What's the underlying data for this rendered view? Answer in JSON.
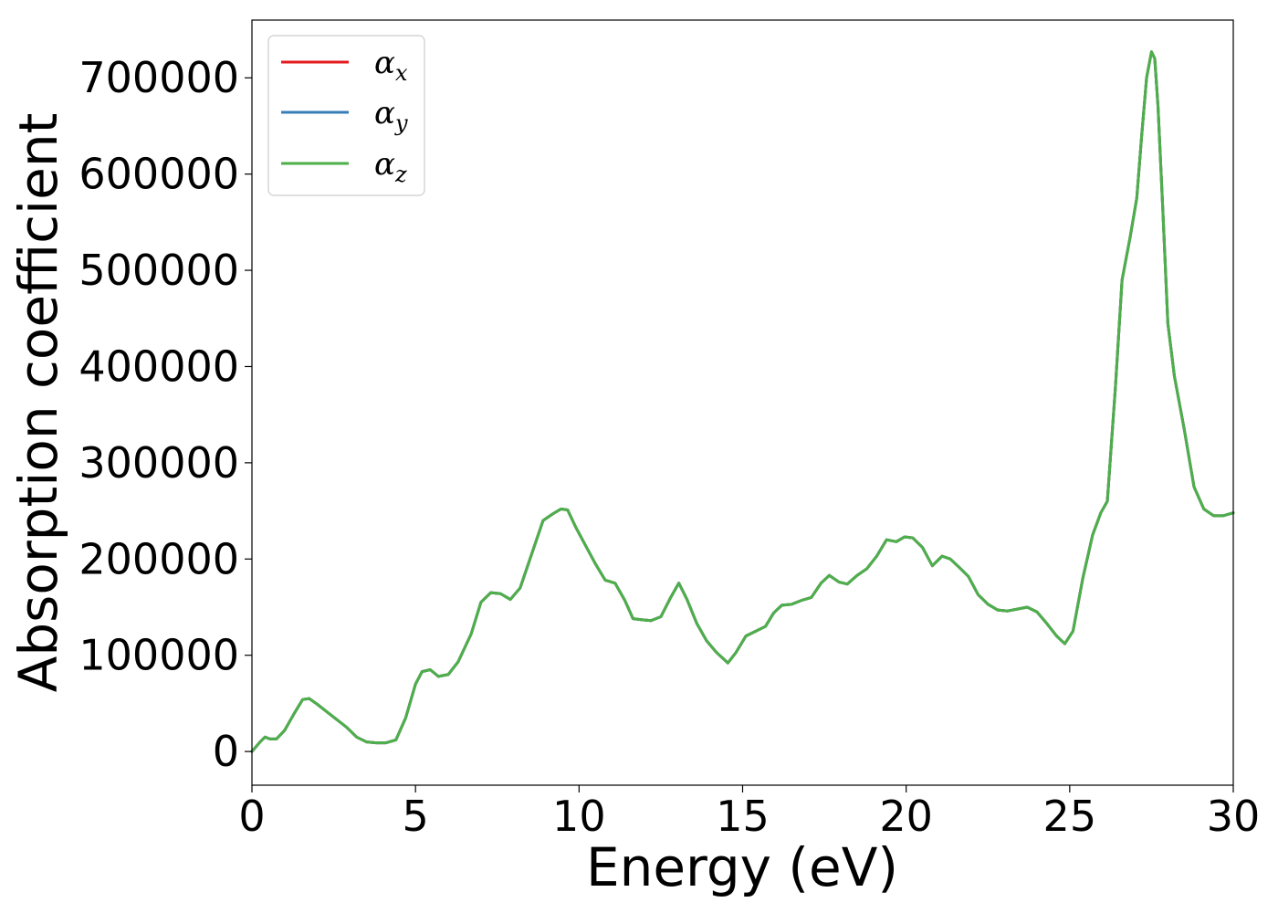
{
  "chart_data": {
    "type": "line",
    "title": "",
    "xlabel": "Energy (eV)",
    "ylabel": "Absorption coefficient",
    "xlim": [
      0,
      30
    ],
    "ylim": [
      -35000,
      760000
    ],
    "xticks": [
      0,
      5,
      10,
      15,
      20,
      25,
      30
    ],
    "xtick_labels": [
      "0",
      "5",
      "10",
      "15",
      "20",
      "25",
      "30"
    ],
    "yticks": [
      0,
      100000,
      200000,
      300000,
      400000,
      500000,
      600000,
      700000
    ],
    "ytick_labels": [
      "0",
      "100000",
      "200000",
      "300000",
      "400000",
      "500000",
      "600000",
      "700000"
    ],
    "grid": false,
    "legend_position": "top-left",
    "x": [
      0,
      0.25,
      0.4,
      0.55,
      0.75,
      1.0,
      1.3,
      1.55,
      1.75,
      2.0,
      2.3,
      2.6,
      2.9,
      3.2,
      3.5,
      3.8,
      4.1,
      4.4,
      4.7,
      5.0,
      5.2,
      5.45,
      5.7,
      6.0,
      6.3,
      6.7,
      7.0,
      7.3,
      7.6,
      7.9,
      8.2,
      8.5,
      8.9,
      9.2,
      9.45,
      9.65,
      9.9,
      10.2,
      10.5,
      10.8,
      11.1,
      11.4,
      11.65,
      11.9,
      12.2,
      12.5,
      12.8,
      13.05,
      13.3,
      13.6,
      13.9,
      14.2,
      14.55,
      14.8,
      15.1,
      15.4,
      15.7,
      15.95,
      16.2,
      16.5,
      16.8,
      17.1,
      17.4,
      17.65,
      17.95,
      18.2,
      18.5,
      18.8,
      19.1,
      19.4,
      19.7,
      19.95,
      20.2,
      20.5,
      20.8,
      21.1,
      21.35,
      21.6,
      21.9,
      22.2,
      22.5,
      22.8,
      23.1,
      23.4,
      23.7,
      24.0,
      24.3,
      24.6,
      24.85,
      25.1,
      25.4,
      25.7,
      25.95,
      26.15,
      26.4,
      26.6,
      26.85,
      27.05,
      27.2,
      27.35,
      27.5,
      27.6,
      27.7,
      27.85,
      28.0,
      28.2,
      28.5,
      28.8,
      29.1,
      29.4,
      29.7,
      30.0
    ],
    "series": [
      {
        "name": "α_x",
        "color": "#e41a1c",
        "values": [
          0,
          10000,
          15000,
          13000,
          13000,
          22000,
          40000,
          54000,
          55000,
          49000,
          41000,
          33000,
          25000,
          15000,
          10000,
          9000,
          9000,
          12000,
          35000,
          70000,
          83000,
          85000,
          78000,
          80000,
          93000,
          122000,
          155000,
          165000,
          164000,
          158000,
          170000,
          200000,
          240000,
          247000,
          252000,
          251000,
          233000,
          214000,
          195000,
          178000,
          175000,
          157000,
          138000,
          137000,
          136000,
          140000,
          160000,
          175000,
          158000,
          133000,
          115000,
          103000,
          92000,
          103000,
          120000,
          125000,
          130000,
          144000,
          152000,
          153000,
          157000,
          160000,
          175000,
          183000,
          176000,
          174000,
          183000,
          190000,
          203000,
          220000,
          218000,
          223000,
          222000,
          212000,
          193000,
          203000,
          200000,
          192000,
          182000,
          163000,
          153000,
          147000,
          146000,
          148000,
          150000,
          145000,
          133000,
          120000,
          112000,
          125000,
          180000,
          225000,
          248000,
          260000,
          380000,
          490000,
          535000,
          575000,
          640000,
          700000,
          727000,
          720000,
          670000,
          560000,
          445000,
          390000,
          335000,
          275000,
          252000,
          245000,
          245000,
          248000
        ]
      },
      {
        "name": "α_y",
        "color": "#377eb8",
        "values": [
          0,
          10000,
          15000,
          13000,
          13000,
          22000,
          40000,
          54000,
          55000,
          49000,
          41000,
          33000,
          25000,
          15000,
          10000,
          9000,
          9000,
          12000,
          35000,
          70000,
          83000,
          85000,
          78000,
          80000,
          93000,
          122000,
          155000,
          165000,
          164000,
          158000,
          170000,
          200000,
          240000,
          247000,
          252000,
          251000,
          233000,
          214000,
          195000,
          178000,
          175000,
          157000,
          138000,
          137000,
          136000,
          140000,
          160000,
          175000,
          158000,
          133000,
          115000,
          103000,
          92000,
          103000,
          120000,
          125000,
          130000,
          144000,
          152000,
          153000,
          157000,
          160000,
          175000,
          183000,
          176000,
          174000,
          183000,
          190000,
          203000,
          220000,
          218000,
          223000,
          222000,
          212000,
          193000,
          203000,
          200000,
          192000,
          182000,
          163000,
          153000,
          147000,
          146000,
          148000,
          150000,
          145000,
          133000,
          120000,
          112000,
          125000,
          180000,
          225000,
          248000,
          260000,
          380000,
          490000,
          535000,
          575000,
          640000,
          700000,
          727000,
          720000,
          670000,
          560000,
          445000,
          390000,
          335000,
          275000,
          252000,
          245000,
          245000,
          248000
        ]
      },
      {
        "name": "α_z",
        "color": "#4daf4a",
        "values": [
          0,
          10000,
          15000,
          13000,
          13000,
          22000,
          40000,
          54000,
          55000,
          49000,
          41000,
          33000,
          25000,
          15000,
          10000,
          9000,
          9000,
          12000,
          35000,
          70000,
          83000,
          85000,
          78000,
          80000,
          93000,
          122000,
          155000,
          165000,
          164000,
          158000,
          170000,
          200000,
          240000,
          247000,
          252000,
          251000,
          233000,
          214000,
          195000,
          178000,
          175000,
          157000,
          138000,
          137000,
          136000,
          140000,
          160000,
          175000,
          158000,
          133000,
          115000,
          103000,
          92000,
          103000,
          120000,
          125000,
          130000,
          144000,
          152000,
          153000,
          157000,
          160000,
          175000,
          183000,
          176000,
          174000,
          183000,
          190000,
          203000,
          220000,
          218000,
          223000,
          222000,
          212000,
          193000,
          203000,
          200000,
          192000,
          182000,
          163000,
          153000,
          147000,
          146000,
          148000,
          150000,
          145000,
          133000,
          120000,
          112000,
          125000,
          180000,
          225000,
          248000,
          260000,
          380000,
          490000,
          535000,
          575000,
          640000,
          700000,
          727000,
          720000,
          670000,
          560000,
          445000,
          390000,
          335000,
          275000,
          252000,
          245000,
          245000,
          248000
        ]
      }
    ],
    "legend": [
      {
        "symbol": "α",
        "subscript": "x",
        "color": "#e41a1c"
      },
      {
        "symbol": "α",
        "subscript": "y",
        "color": "#377eb8"
      },
      {
        "symbol": "α",
        "subscript": "z",
        "color": "#4daf4a"
      }
    ]
  }
}
